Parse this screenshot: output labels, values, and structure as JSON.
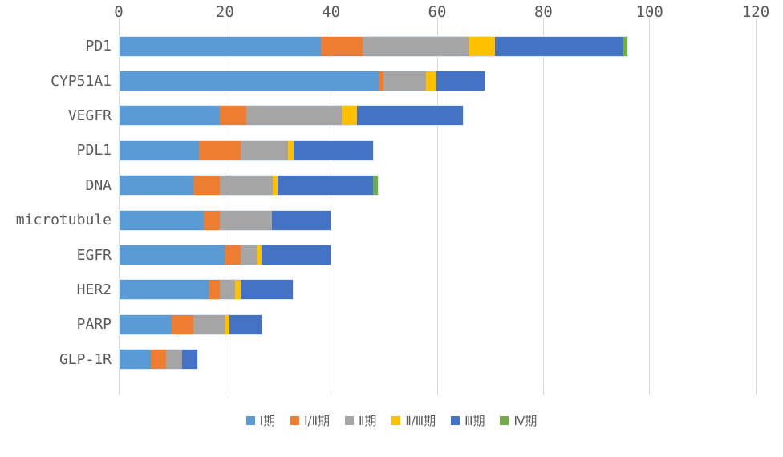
{
  "chart_data": {
    "type": "bar",
    "orientation": "horizontal",
    "stacked": true,
    "title": "",
    "xlabel": "",
    "ylabel": "",
    "grid": true,
    "legend_position": "bottom",
    "x_axis": {
      "min": 0,
      "max": 120,
      "tick_interval": 20,
      "tick_labels": [
        "0",
        "20",
        "40",
        "60",
        "80",
        "100",
        "120"
      ]
    },
    "categories": [
      "PD1",
      "CYP51A1",
      "VEGFR",
      "PDL1",
      "DNA",
      "microtubule",
      "EGFR",
      "HER2",
      "PARP",
      "GLP-1R"
    ],
    "series": [
      {
        "name": "Ⅰ期",
        "color": "#5B9BD5",
        "values": [
          38,
          49,
          19,
          15,
          14,
          16,
          20,
          17,
          10,
          6
        ]
      },
      {
        "name": "Ⅰ/Ⅱ期",
        "color": "#ED7D31",
        "values": [
          8,
          1,
          5,
          8,
          5,
          3,
          3,
          2,
          4,
          3
        ]
      },
      {
        "name": "Ⅱ期",
        "color": "#A5A5A5",
        "values": [
          20,
          8,
          18,
          9,
          10,
          10,
          3,
          3,
          6,
          3
        ]
      },
      {
        "name": "Ⅱ/Ⅲ期",
        "color": "#FFC000",
        "values": [
          5,
          2,
          3,
          1,
          1,
          0,
          1,
          1,
          1,
          0
        ]
      },
      {
        "name": "Ⅲ期",
        "color": "#4472C4",
        "values": [
          24,
          9,
          20,
          15,
          18,
          11,
          13,
          10,
          6,
          3
        ]
      },
      {
        "name": "Ⅳ期",
        "color": "#70AD47",
        "values": [
          1,
          0,
          0,
          0,
          1,
          0,
          0,
          0,
          0,
          0
        ]
      }
    ],
    "totals": [
      96,
      69,
      65,
      48,
      49,
      40,
      40,
      33,
      27,
      15
    ]
  },
  "colors": {
    "background": "#FFFFFF",
    "gridline": "#D9D9D9",
    "axis_text": "#595959",
    "bar_border": "#DCE9F8"
  }
}
